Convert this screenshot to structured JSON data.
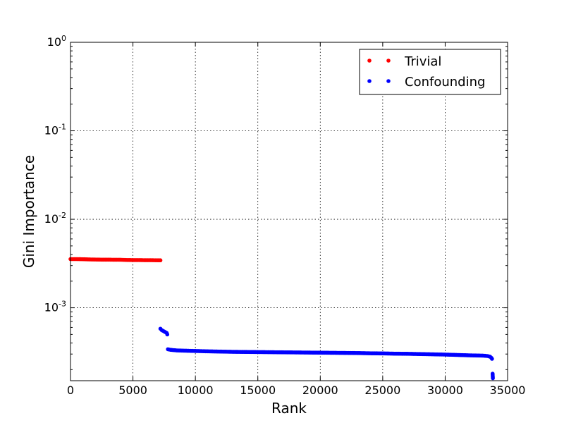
{
  "chart_data": {
    "type": "scatter",
    "title": "",
    "xlabel": "Rank",
    "ylabel": "Gini Importance",
    "xscale": "linear",
    "yscale": "log",
    "xlim": [
      0,
      35000
    ],
    "ylim": [
      0.00015,
      1
    ],
    "grid": true,
    "legend_position": "top-right",
    "x_ticks": [
      {
        "value": 0,
        "label": "0"
      },
      {
        "value": 5000,
        "label": "5000"
      },
      {
        "value": 10000,
        "label": "10000"
      },
      {
        "value": 15000,
        "label": "15000"
      },
      {
        "value": 20000,
        "label": "20000"
      },
      {
        "value": 25000,
        "label": "25000"
      },
      {
        "value": 30000,
        "label": "30000"
      },
      {
        "value": 35000,
        "label": "35000"
      }
    ],
    "y_ticks": [
      {
        "value": 0.001,
        "base": "10",
        "exp": "-3"
      },
      {
        "value": 0.01,
        "base": "10",
        "exp": "-2"
      },
      {
        "value": 0.1,
        "base": "10",
        "exp": "-1"
      },
      {
        "value": 1,
        "base": "10",
        "exp": "0"
      }
    ],
    "series": [
      {
        "name": "Trivial",
        "color": "#ff0000",
        "points": [
          [
            0,
            0.00355
          ],
          [
            500,
            0.00355
          ],
          [
            1000,
            0.00354
          ],
          [
            1500,
            0.00352
          ],
          [
            2000,
            0.00351
          ],
          [
            2500,
            0.0035
          ],
          [
            3000,
            0.0035
          ],
          [
            3500,
            0.00349
          ],
          [
            4000,
            0.00349
          ],
          [
            4500,
            0.00347
          ],
          [
            5000,
            0.00346
          ],
          [
            5500,
            0.00346
          ],
          [
            6000,
            0.00345
          ],
          [
            6500,
            0.00345
          ],
          [
            7000,
            0.00344
          ],
          [
            7200,
            0.00344
          ]
        ]
      },
      {
        "name": "Confounding",
        "color": "#0000ff",
        "points": [
          [
            7200,
            0.00058
          ],
          [
            7300,
            0.00056
          ],
          [
            7400,
            0.00055
          ],
          [
            7500,
            0.00054
          ],
          [
            7600,
            0.00053
          ],
          [
            7700,
            0.00052
          ],
          [
            7750,
            0.0005
          ],
          [
            7800,
            0.00034
          ],
          [
            8000,
            0.000335
          ],
          [
            8500,
            0.00033
          ],
          [
            9000,
            0.000328
          ],
          [
            10000,
            0.000325
          ],
          [
            11000,
            0.000322
          ],
          [
            12000,
            0.00032
          ],
          [
            13000,
            0.000318
          ],
          [
            14000,
            0.000317
          ],
          [
            15000,
            0.000316
          ],
          [
            16000,
            0.000315
          ],
          [
            17000,
            0.000314
          ],
          [
            18000,
            0.000313
          ],
          [
            19000,
            0.000312
          ],
          [
            20000,
            0.000311
          ],
          [
            21000,
            0.00031
          ],
          [
            22000,
            0.000309
          ],
          [
            23000,
            0.000308
          ],
          [
            24000,
            0.000306
          ],
          [
            25000,
            0.000305
          ],
          [
            26000,
            0.000303
          ],
          [
            27000,
            0.000302
          ],
          [
            28000,
            0.0003
          ],
          [
            29000,
            0.000298
          ],
          [
            30000,
            0.000296
          ],
          [
            31000,
            0.000293
          ],
          [
            32000,
            0.00029
          ],
          [
            33000,
            0.000288
          ],
          [
            33400,
            0.000285
          ],
          [
            33600,
            0.00028
          ],
          [
            33700,
            0.000272
          ],
          [
            33750,
            0.000265
          ],
          [
            33800,
            0.00018
          ],
          [
            33820,
            0.00016
          ]
        ]
      }
    ]
  }
}
